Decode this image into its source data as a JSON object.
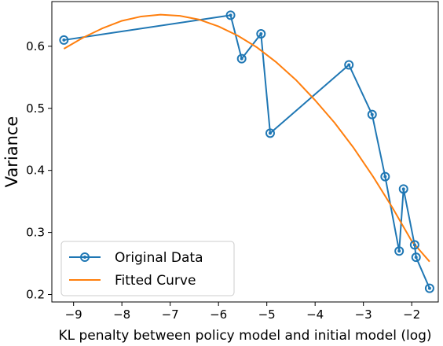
{
  "chart_data": {
    "type": "line",
    "title": "",
    "xlabel": "KL penalty between policy model and initial model (log)",
    "ylabel": "Variance",
    "xlim": [
      -9.45,
      -1.45
    ],
    "ylim": [
      0.188,
      0.672
    ],
    "xticks": [
      -9,
      -8,
      -7,
      -6,
      -5,
      -4,
      -3,
      -2
    ],
    "yticks": [
      0.2,
      0.3,
      0.4,
      0.5,
      0.6
    ],
    "grid": false,
    "legend_position": "lower-left",
    "series": [
      {
        "name": "Original Data",
        "kind": "line-markers",
        "color": "#1f77b4",
        "x": [
          -9.2,
          -5.75,
          -5.52,
          -5.12,
          -4.93,
          -3.3,
          -2.82,
          -2.55,
          -2.26,
          -2.17,
          -1.94,
          -1.91,
          -1.63
        ],
        "y": [
          0.61,
          0.65,
          0.58,
          0.62,
          0.46,
          0.57,
          0.49,
          0.39,
          0.27,
          0.37,
          0.28,
          0.26,
          0.21
        ]
      },
      {
        "name": "Fitted Curve",
        "kind": "line",
        "color": "#ff7f0e",
        "x": [
          -9.2,
          -8.8,
          -8.4,
          -8.0,
          -7.6,
          -7.2,
          -6.8,
          -6.4,
          -6.0,
          -5.6,
          -5.2,
          -4.8,
          -4.4,
          -4.0,
          -3.6,
          -3.2,
          -2.8,
          -2.4,
          -2.0,
          -1.63
        ],
        "y": [
          0.596,
          0.614,
          0.629,
          0.641,
          0.648,
          0.651,
          0.649,
          0.643,
          0.632,
          0.617,
          0.598,
          0.574,
          0.546,
          0.513,
          0.477,
          0.436,
          0.39,
          0.34,
          0.286,
          0.253
        ]
      }
    ]
  }
}
